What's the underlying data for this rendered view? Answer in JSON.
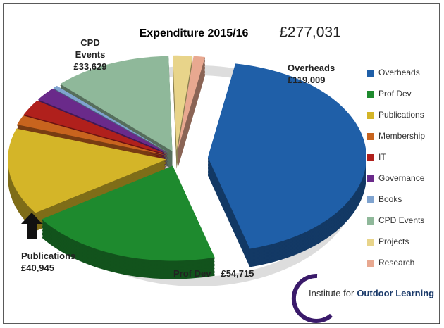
{
  "chart_data": {
    "type": "pie3d",
    "title": "Expenditure 2015/16",
    "total_label": "£277,031",
    "categories": [
      "Overheads",
      "Prof Dev",
      "Publications",
      "Membership",
      "IT",
      "Governance",
      "Books",
      "CPD Events",
      "Projects",
      "Research"
    ],
    "values": [
      119009,
      54715,
      40945,
      4500,
      7500,
      6500,
      1500,
      33629,
      5500,
      3233
    ],
    "value_labels": [
      "£119,009",
      "£54,715",
      "£40,945",
      null,
      null,
      null,
      null,
      "£33,629",
      null,
      null
    ],
    "colors": [
      "#1f5fa8",
      "#1e8a2e",
      "#d4b528",
      "#c8641e",
      "#b0201c",
      "#6a2a8a",
      "#7fa3cf",
      "#8fb89a",
      "#e8d48a",
      "#e8a890"
    ],
    "legend": "right"
  },
  "logo": {
    "prefix": "Institute for",
    "name": "Outdoor Learning"
  }
}
